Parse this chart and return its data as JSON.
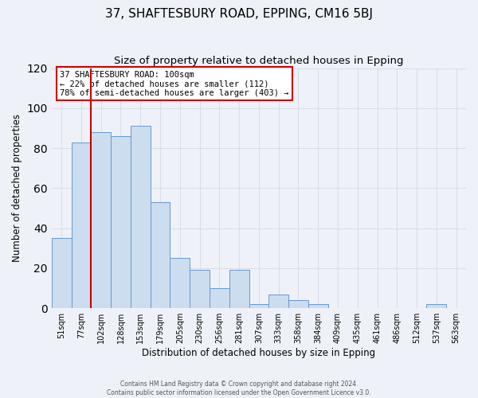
{
  "title": "37, SHAFTESBURY ROAD, EPPING, CM16 5BJ",
  "subtitle": "Size of property relative to detached houses in Epping",
  "xlabel": "Distribution of detached houses by size in Epping",
  "ylabel": "Number of detached properties",
  "categories": [
    "51sqm",
    "77sqm",
    "102sqm",
    "128sqm",
    "153sqm",
    "179sqm",
    "205sqm",
    "230sqm",
    "256sqm",
    "281sqm",
    "307sqm",
    "333sqm",
    "358sqm",
    "384sqm",
    "409sqm",
    "435sqm",
    "461sqm",
    "486sqm",
    "512sqm",
    "537sqm",
    "563sqm"
  ],
  "values": [
    35,
    83,
    88,
    86,
    91,
    53,
    25,
    19,
    10,
    19,
    2,
    7,
    4,
    2,
    0,
    0,
    0,
    0,
    0,
    2,
    0
  ],
  "bar_color": "#ccddef",
  "bar_edge_color": "#6699cc",
  "highlight_index": 2,
  "highlight_line_color": "#cc0000",
  "ylim": [
    0,
    120
  ],
  "yticks": [
    0,
    20,
    40,
    60,
    80,
    100,
    120
  ],
  "annotation_line1": "37 SHAFTESBURY ROAD: 100sqm",
  "annotation_line2": "← 22% of detached houses are smaller (112)",
  "annotation_line3": "78% of semi-detached houses are larger (403) →",
  "annotation_box_color": "#ffffff",
  "annotation_box_edge": "#cc0000",
  "footer_line1": "Contains HM Land Registry data © Crown copyright and database right 2024.",
  "footer_line2": "Contains public sector information licensed under the Open Government Licence v3.0.",
  "background_color": "#eef2f8",
  "grid_color": "#d8dde8",
  "title_fontsize": 11,
  "subtitle_fontsize": 9.5
}
